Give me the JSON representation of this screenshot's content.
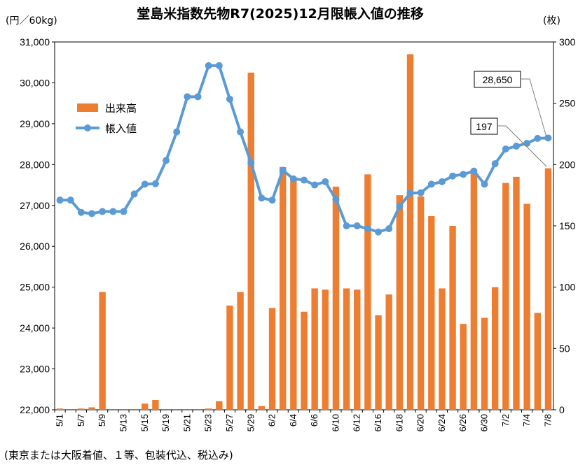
{
  "chart_data": {
    "type": "bar+line",
    "title": "堂島米指数先物R7(2025)12月限帳入値の推移",
    "left_axis_unit": "(円／60kg)",
    "right_axis_unit": "(枚)",
    "left_ylim": [
      22000,
      31000
    ],
    "left_ticks": [
      "22,000",
      "23,000",
      "24,000",
      "25,000",
      "26,000",
      "27,000",
      "28,000",
      "29,000",
      "30,000",
      "31,000"
    ],
    "right_ylim": [
      0,
      300
    ],
    "right_ticks": [
      "0",
      "50",
      "100",
      "150",
      "200",
      "250",
      "300"
    ],
    "dates": [
      "5/1",
      "5/2",
      "5/7",
      "5/8",
      "5/9",
      "5/12",
      "5/13",
      "5/14",
      "5/15",
      "5/16",
      "5/19",
      "5/20",
      "5/21",
      "5/22",
      "5/23",
      "5/26",
      "5/27",
      "5/28",
      "5/29",
      "5/30",
      "6/2",
      "6/3",
      "6/4",
      "6/5",
      "6/6",
      "6/9",
      "6/10",
      "6/11",
      "6/12",
      "6/13",
      "6/16",
      "6/17",
      "6/18",
      "6/19",
      "6/20",
      "6/23",
      "6/24",
      "6/25",
      "6/26",
      "6/27",
      "6/30",
      "7/1",
      "7/2",
      "7/3",
      "7/4",
      "7/7",
      "7/8"
    ],
    "x_tick_labels": [
      "5/1",
      "",
      "5/7",
      "",
      "5/9",
      "",
      "5/13",
      "",
      "5/15",
      "",
      "5/19",
      "",
      "5/21",
      "",
      "5/23",
      "",
      "5/27",
      "",
      "5/29",
      "",
      "6/2",
      "",
      "6/4",
      "",
      "6/6",
      "",
      "6/10",
      "",
      "6/12",
      "",
      "6/16",
      "",
      "6/18",
      "",
      "6/20",
      "",
      "6/24",
      "",
      "6/26",
      "",
      "6/30",
      "",
      "7/2",
      "",
      "7/4",
      "",
      "7/8"
    ],
    "series": [
      {
        "name": "出来高",
        "type": "bar",
        "axis": "right",
        "color": "#ED7D31",
        "values": [
          1,
          0,
          1,
          2,
          96,
          0,
          0,
          0,
          5,
          8,
          0,
          0,
          0,
          0,
          1,
          7,
          85,
          96,
          275,
          3,
          83,
          198,
          190,
          80,
          99,
          98,
          182,
          99,
          98,
          192,
          77,
          94,
          175,
          290,
          174,
          158,
          99,
          150,
          70,
          196,
          75,
          100,
          185,
          190,
          168,
          79,
          197
        ]
      },
      {
        "name": "帳入値",
        "type": "line",
        "axis": "left",
        "color": "#5B9BD5",
        "values": [
          27130,
          27130,
          26830,
          26800,
          26850,
          26850,
          26850,
          27280,
          27520,
          27530,
          28100,
          28800,
          29660,
          29660,
          30420,
          30420,
          29600,
          28800,
          28050,
          27180,
          27130,
          27860,
          27650,
          27620,
          27500,
          27580,
          27150,
          26500,
          26500,
          26430,
          26350,
          26430,
          26980,
          27300,
          27310,
          27520,
          27580,
          27720,
          27760,
          27840,
          27520,
          28020,
          28380,
          28450,
          28520,
          28640,
          28650
        ]
      }
    ],
    "legend": [
      "出来高",
      "帳入値"
    ],
    "legend_position": "upper-left",
    "callouts": [
      {
        "text": "28,650",
        "target": "帳入値 7/8"
      },
      {
        "text": "197",
        "target": "出来高 7/8"
      }
    ],
    "gridlines": false
  },
  "footnote": "(東京または大阪着値、１等、包装代込、税込み)"
}
